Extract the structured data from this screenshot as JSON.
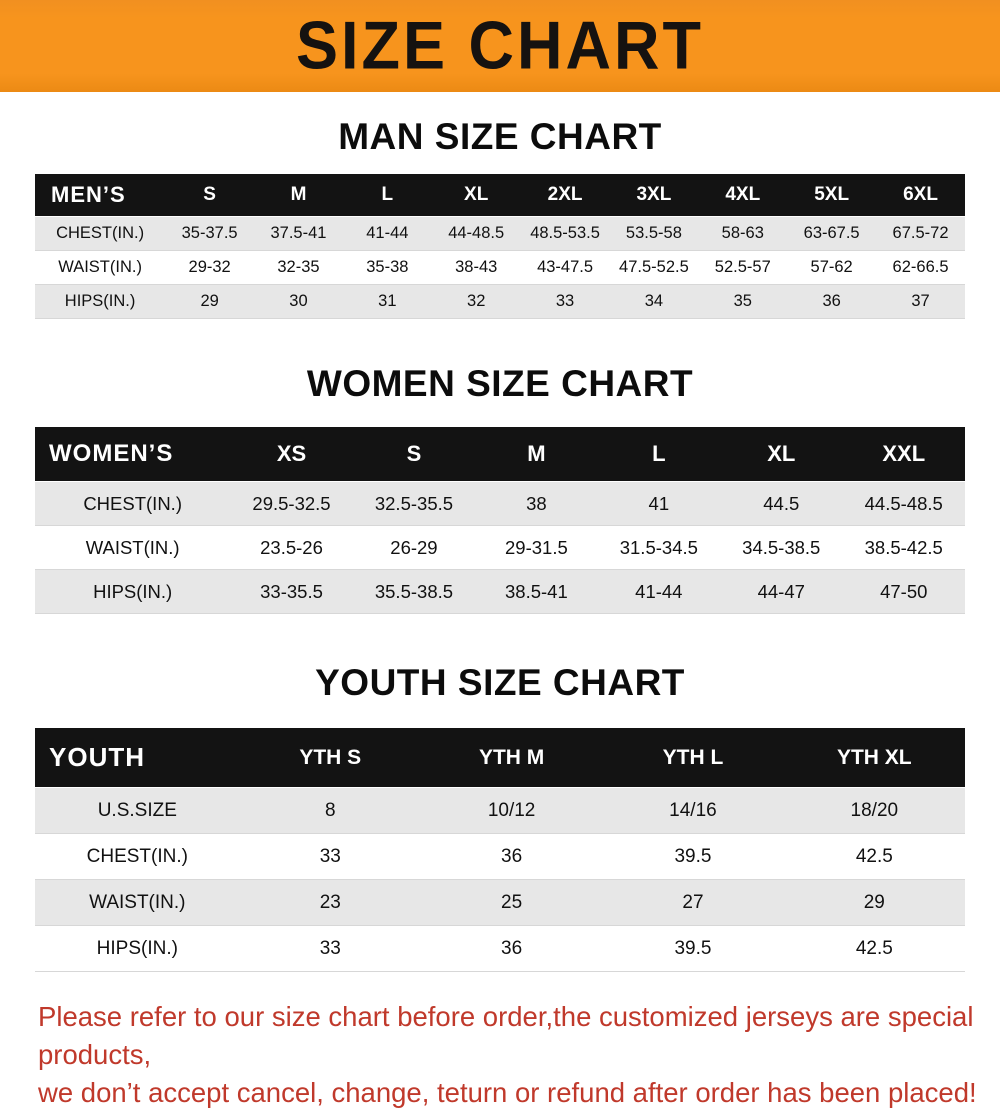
{
  "colors": {
    "banner_bg": "#f7941d",
    "table_header_bg": "#131313",
    "row_alt_bg": "#e7e7e7",
    "footer_text": "#c0392b"
  },
  "banner": {
    "title": "SIZE CHART"
  },
  "sections": [
    {
      "heading": "MAN SIZE CHART",
      "table": {
        "header": [
          "MEN’S",
          "S",
          "M",
          "L",
          "XL",
          "2XL",
          "3XL",
          "4XL",
          "5XL",
          "6XL"
        ],
        "rows": [
          [
            "CHEST(IN.)",
            "35-37.5",
            "37.5-41",
            "41-44",
            "44-48.5",
            "48.5-53.5",
            "53.5-58",
            "58-63",
            "63-67.5",
            "67.5-72"
          ],
          [
            "WAIST(IN.)",
            "29-32",
            "32-35",
            "35-38",
            "38-43",
            "43-47.5",
            "47.5-52.5",
            "52.5-57",
            "57-62",
            "62-66.5"
          ],
          [
            "HIPS(IN.)",
            "29",
            "30",
            "31",
            "32",
            "33",
            "34",
            "35",
            "36",
            "37"
          ]
        ]
      }
    },
    {
      "heading": "WOMEN SIZE CHART",
      "table": {
        "header": [
          "WOMEN’S",
          "XS",
          "S",
          "M",
          "L",
          "XL",
          "XXL"
        ],
        "rows": [
          [
            "CHEST(IN.)",
            "29.5-32.5",
            "32.5-35.5",
            "38",
            "41",
            "44.5",
            "44.5-48.5"
          ],
          [
            "WAIST(IN.)",
            "23.5-26",
            "26-29",
            "29-31.5",
            "31.5-34.5",
            "34.5-38.5",
            "38.5-42.5"
          ],
          [
            "HIPS(IN.)",
            "33-35.5",
            "35.5-38.5",
            "38.5-41",
            "41-44",
            "44-47",
            "47-50"
          ]
        ]
      }
    },
    {
      "heading": "YOUTH SIZE CHART",
      "table": {
        "header": [
          "YOUTH",
          "YTH S",
          "YTH M",
          "YTH L",
          "YTH XL"
        ],
        "rows": [
          [
            "U.S.SIZE",
            "8",
            "10/12",
            "14/16",
            "18/20"
          ],
          [
            "CHEST(IN.)",
            "33",
            "36",
            "39.5",
            "42.5"
          ],
          [
            "WAIST(IN.)",
            "23",
            "25",
            "27",
            "29"
          ],
          [
            "HIPS(IN.)",
            "33",
            "36",
            "39.5",
            "42.5"
          ]
        ]
      }
    }
  ],
  "footer": {
    "lines": [
      "Please refer to our size chart before order,the customized jerseys are special products,",
      "we don’t accept cancel, change, teturn or refund after order has been placed!"
    ]
  }
}
